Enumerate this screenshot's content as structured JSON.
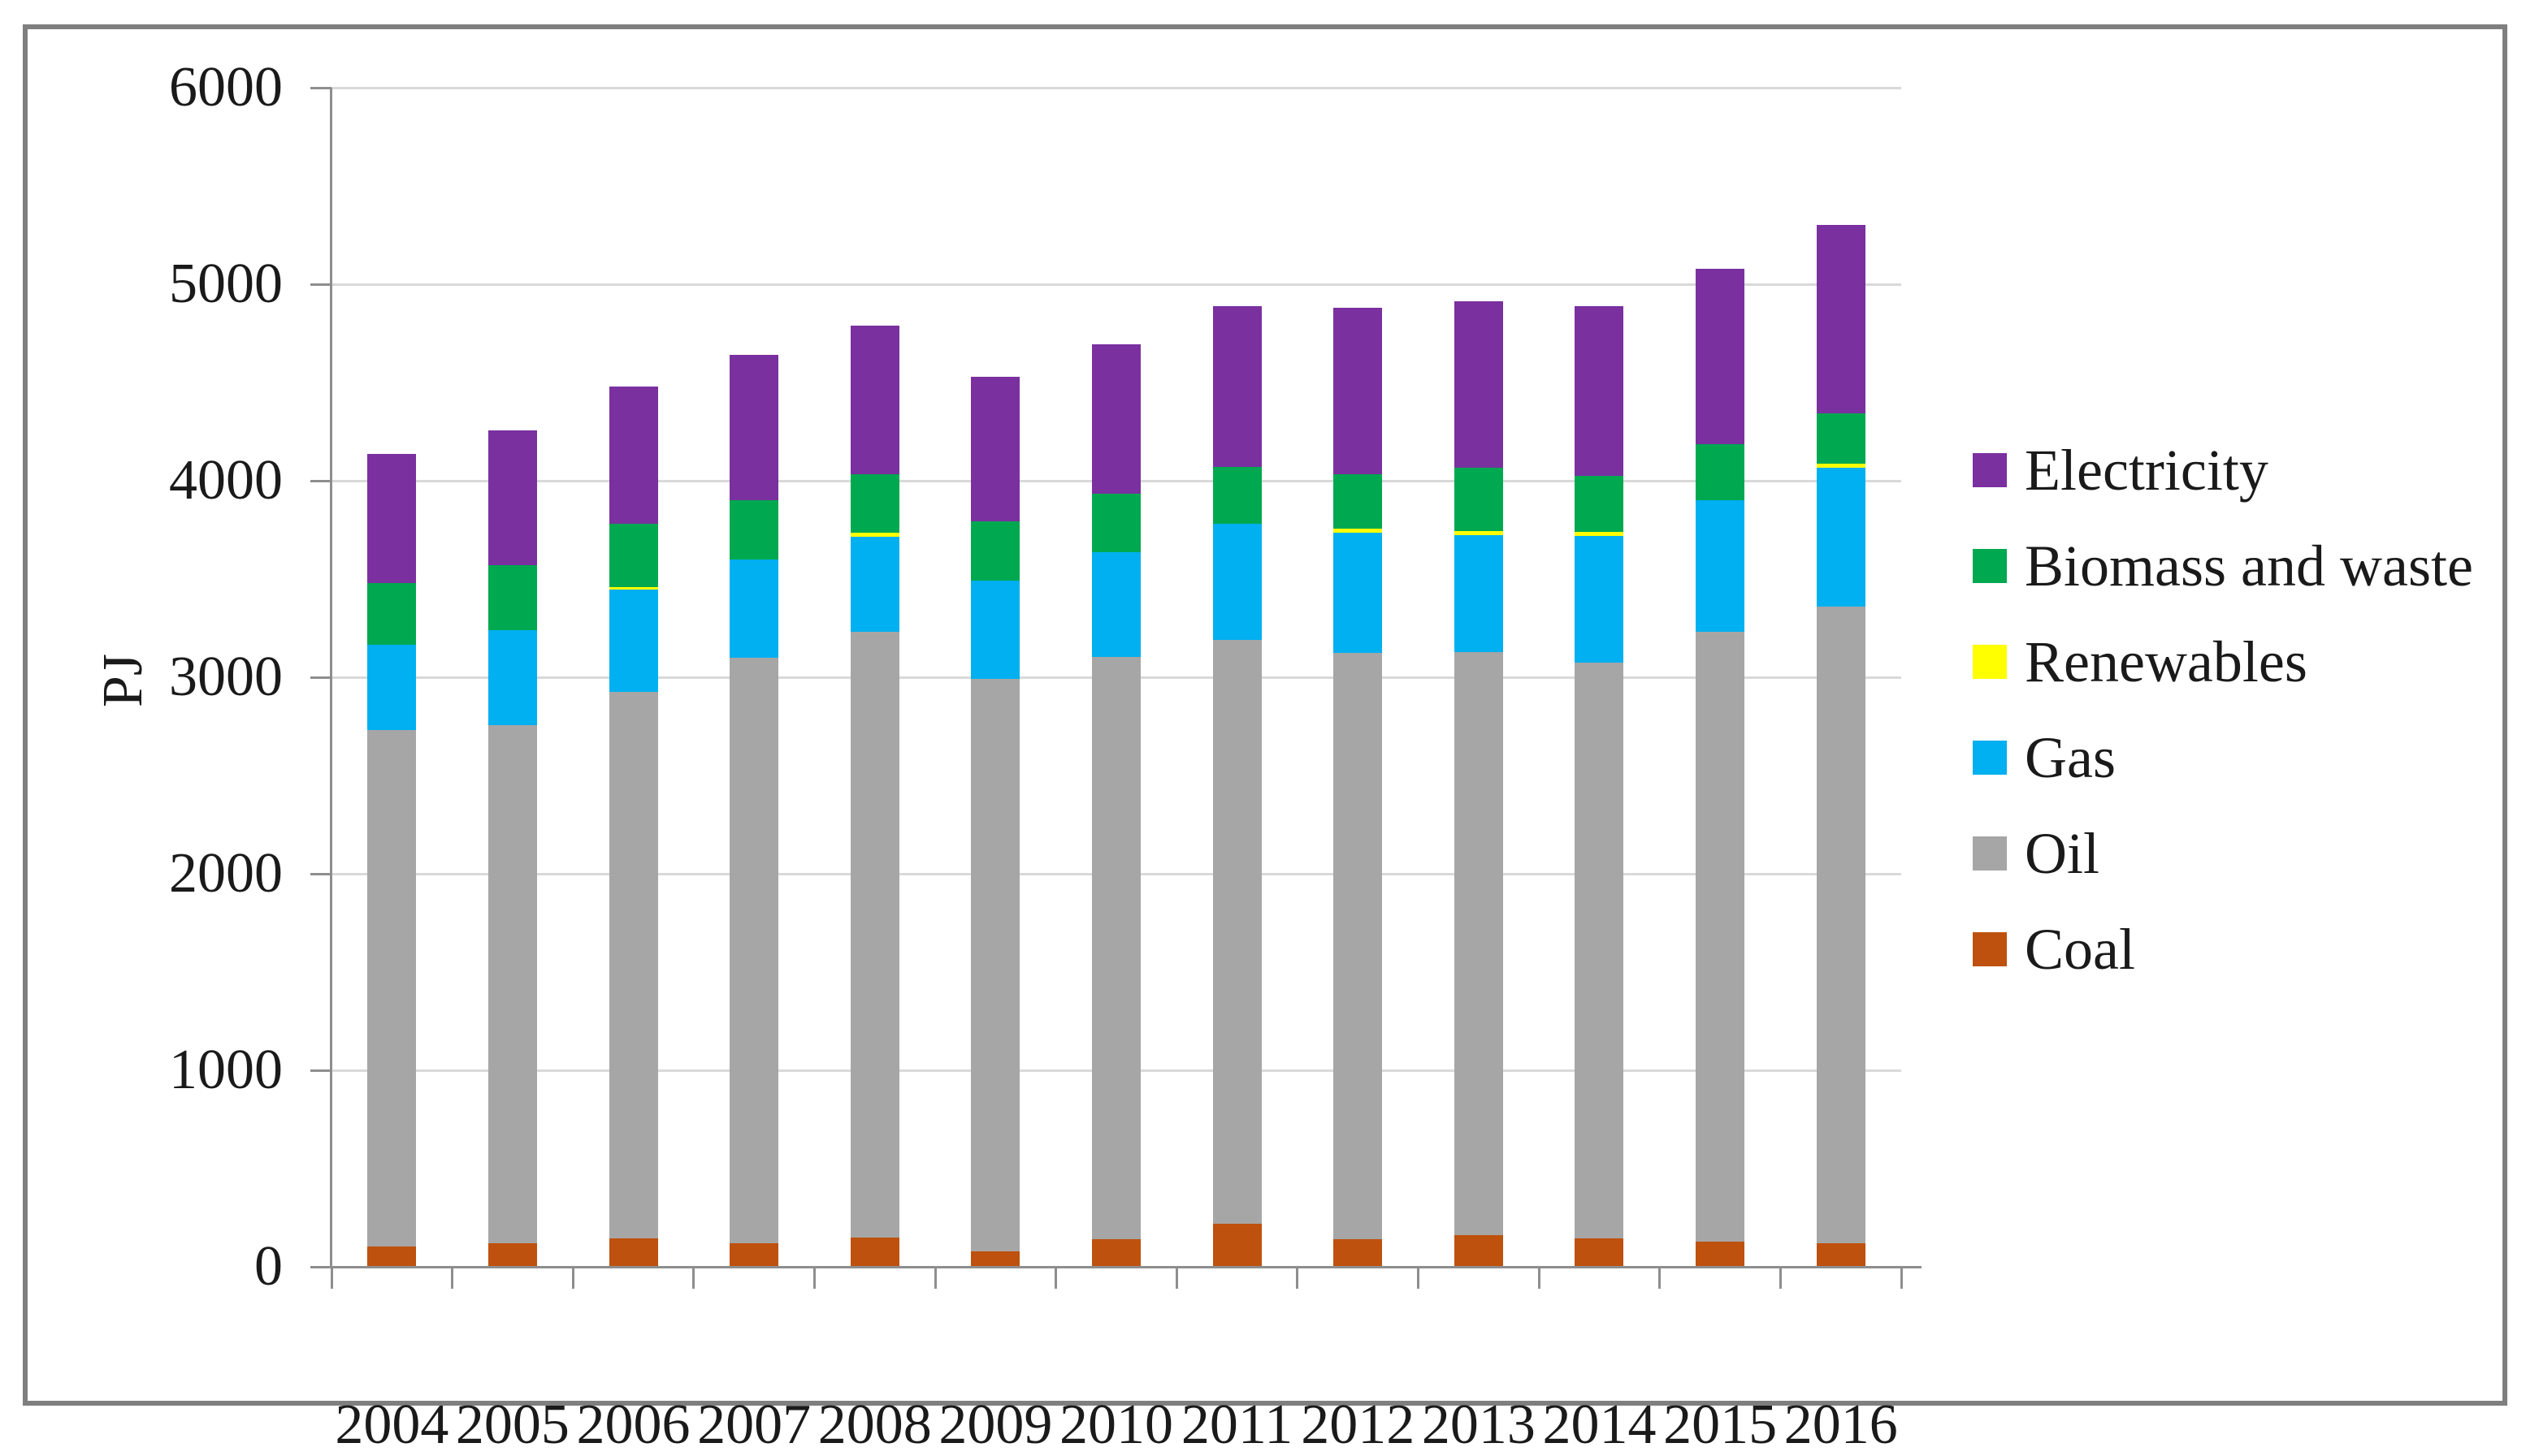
{
  "figure": {
    "border_color": "#7f7f7f",
    "background": "#ffffff",
    "grid_color": "#d9d9d9",
    "axis_color": "#8e8e8e",
    "text_color": "#1a1a1a"
  },
  "chart_data": {
    "type": "bar",
    "stacked": true,
    "title": "",
    "xlabel": "",
    "ylabel": "PJ",
    "ylim": [
      0,
      6000
    ],
    "yticks": [
      0,
      1000,
      2000,
      3000,
      4000,
      5000,
      6000
    ],
    "grid": true,
    "legend_position": "right",
    "categories": [
      "2004",
      "2005",
      "2006",
      "2007",
      "2008",
      "2009",
      "2010",
      "2011",
      "2012",
      "2013",
      "2014",
      "2015",
      "2016"
    ],
    "series": [
      {
        "name": "Coal",
        "color": "#be510d",
        "values": [
          105,
          120,
          145,
          120,
          150,
          80,
          140,
          220,
          140,
          160,
          145,
          130,
          120
        ]
      },
      {
        "name": "Oil",
        "color": "#a6a6a6",
        "values": [
          2625,
          2635,
          2780,
          2980,
          3080,
          2910,
          2965,
          2970,
          2985,
          2970,
          2930,
          3100,
          3240
        ]
      },
      {
        "name": "Gas",
        "color": "#00b0f0",
        "values": [
          435,
          485,
          520,
          500,
          485,
          500,
          530,
          590,
          610,
          595,
          645,
          670,
          705
        ]
      },
      {
        "name": "Renewables",
        "color": "#ffff00",
        "values": [
          0,
          0,
          15,
          0,
          20,
          0,
          0,
          0,
          20,
          20,
          20,
          0,
          20
        ]
      },
      {
        "name": "Biomass and waste",
        "color": "#00a850",
        "values": [
          315,
          330,
          320,
          300,
          300,
          305,
          300,
          290,
          280,
          320,
          285,
          285,
          260
        ]
      },
      {
        "name": "Electricity",
        "color": "#7a309f",
        "values": [
          655,
          685,
          700,
          740,
          755,
          735,
          760,
          820,
          845,
          850,
          865,
          895,
          955
        ]
      }
    ],
    "totals": [
      4135,
      4255,
      4480,
      4640,
      4790,
      4530,
      4695,
      4890,
      4880,
      4915,
      4890,
      5080,
      5300
    ],
    "legend_order": [
      "Electricity",
      "Biomass and waste",
      "Renewables",
      "Gas",
      "Oil",
      "Coal"
    ]
  }
}
